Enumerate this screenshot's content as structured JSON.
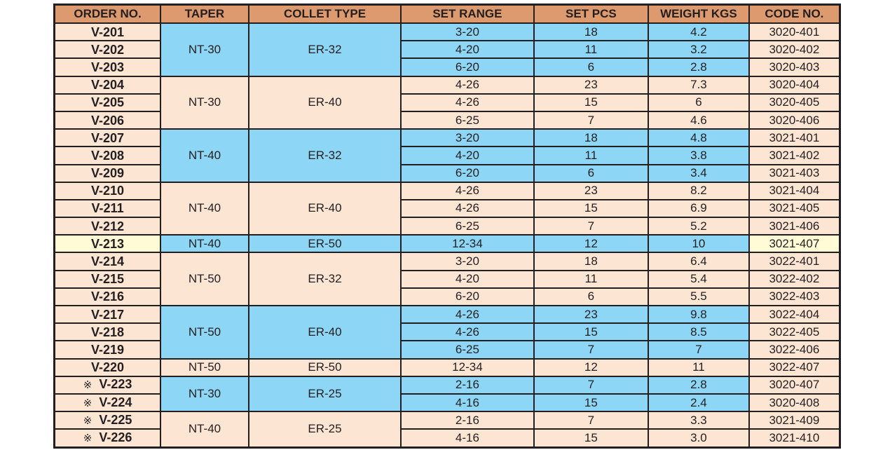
{
  "headers": [
    "ORDER NO.",
    "TAPER",
    "COLLET TYPE",
    "SET RANGE",
    "SET PCS",
    "WEIGHT KGS",
    "CODE NO."
  ],
  "colors": {
    "header": "#dc9a6e",
    "peach": "#fde5d4",
    "blue": "#8dd6f5",
    "highlight": "#fefbd6"
  },
  "mark_symbol": "※",
  "groups": [
    {
      "taper": "NT-30",
      "collet": "ER-32",
      "color": "blue",
      "rows": [
        {
          "order": "V-201",
          "range": "3-20",
          "pcs": "18",
          "weight": "4.2",
          "code": "3020-401"
        },
        {
          "order": "V-202",
          "range": "4-20",
          "pcs": "11",
          "weight": "3.2",
          "code": "3020-402"
        },
        {
          "order": "V-203",
          "range": "6-20",
          "pcs": "6",
          "weight": "2.8",
          "code": "3020-403"
        }
      ]
    },
    {
      "taper": "NT-30",
      "collet": "ER-40",
      "color": "peach",
      "rows": [
        {
          "order": "V-204",
          "range": "4-26",
          "pcs": "23",
          "weight": "7.3",
          "code": "3020-404"
        },
        {
          "order": "V-205",
          "range": "4-26",
          "pcs": "15",
          "weight": "6",
          "code": "3020-405"
        },
        {
          "order": "V-206",
          "range": "6-25",
          "pcs": "7",
          "weight": "4.6",
          "code": "3020-406"
        }
      ]
    },
    {
      "taper": "NT-40",
      "collet": "ER-32",
      "color": "blue",
      "rows": [
        {
          "order": "V-207",
          "range": "3-20",
          "pcs": "18",
          "weight": "4.8",
          "code": "3021-401"
        },
        {
          "order": "V-208",
          "range": "4-20",
          "pcs": "11",
          "weight": "3.8",
          "code": "3021-402"
        },
        {
          "order": "V-209",
          "range": "6-20",
          "pcs": "6",
          "weight": "3.4",
          "code": "3021-403"
        }
      ]
    },
    {
      "taper": "NT-40",
      "collet": "ER-40",
      "color": "peach",
      "rows": [
        {
          "order": "V-210",
          "range": "4-26",
          "pcs": "23",
          "weight": "8.2",
          "code": "3021-404"
        },
        {
          "order": "V-211",
          "range": "4-26",
          "pcs": "15",
          "weight": "6.9",
          "code": "3021-405"
        },
        {
          "order": "V-212",
          "range": "6-25",
          "pcs": "7",
          "weight": "5.2",
          "code": "3021-406"
        }
      ]
    },
    {
      "taper": "NT-40",
      "collet": "ER-50",
      "color": "blue",
      "highlight": true,
      "rows": [
        {
          "order": "V-213",
          "range": "12-34",
          "pcs": "12",
          "weight": "10",
          "code": "3021-407"
        }
      ]
    },
    {
      "taper": "NT-50",
      "collet": "ER-32",
      "color": "peach",
      "rows": [
        {
          "order": "V-214",
          "range": "3-20",
          "pcs": "18",
          "weight": "6.4",
          "code": "3022-401"
        },
        {
          "order": "V-215",
          "range": "4-20",
          "pcs": "11",
          "weight": "5.4",
          "code": "3022-402"
        },
        {
          "order": "V-216",
          "range": "6-20",
          "pcs": "6",
          "weight": "5.5",
          "code": "3022-403"
        }
      ]
    },
    {
      "taper": "NT-50",
      "collet": "ER-40",
      "color": "blue",
      "rows": [
        {
          "order": "V-217",
          "range": "4-26",
          "pcs": "23",
          "weight": "9.8",
          "code": "3022-404"
        },
        {
          "order": "V-218",
          "range": "4-26",
          "pcs": "15",
          "weight": "8.5",
          "code": "3022-405"
        },
        {
          "order": "V-219",
          "range": "6-25",
          "pcs": "7",
          "weight": "7",
          "code": "3022-406"
        }
      ]
    },
    {
      "taper": "NT-50",
      "collet": "ER-50",
      "color": "peach",
      "rows": [
        {
          "order": "V-220",
          "range": "12-34",
          "pcs": "12",
          "weight": "11",
          "code": "3022-407"
        }
      ]
    },
    {
      "taper": "NT-30",
      "collet": "ER-25",
      "color": "blue",
      "rows": [
        {
          "order": "V-223",
          "marked": true,
          "range": "2-16",
          "pcs": "7",
          "weight": "2.8",
          "code": "3020-407"
        },
        {
          "order": "V-224",
          "marked": true,
          "range": "4-16",
          "pcs": "15",
          "weight": "2.4",
          "code": "3020-408"
        }
      ]
    },
    {
      "taper": "NT-40",
      "collet": "ER-25",
      "color": "peach",
      "rows": [
        {
          "order": "V-225",
          "marked": true,
          "range": "2-16",
          "pcs": "7",
          "weight": "3.3",
          "code": "3021-409"
        },
        {
          "order": "V-226",
          "marked": true,
          "range": "4-16",
          "pcs": "15",
          "weight": "3.0",
          "code": "3021-410"
        }
      ]
    }
  ]
}
